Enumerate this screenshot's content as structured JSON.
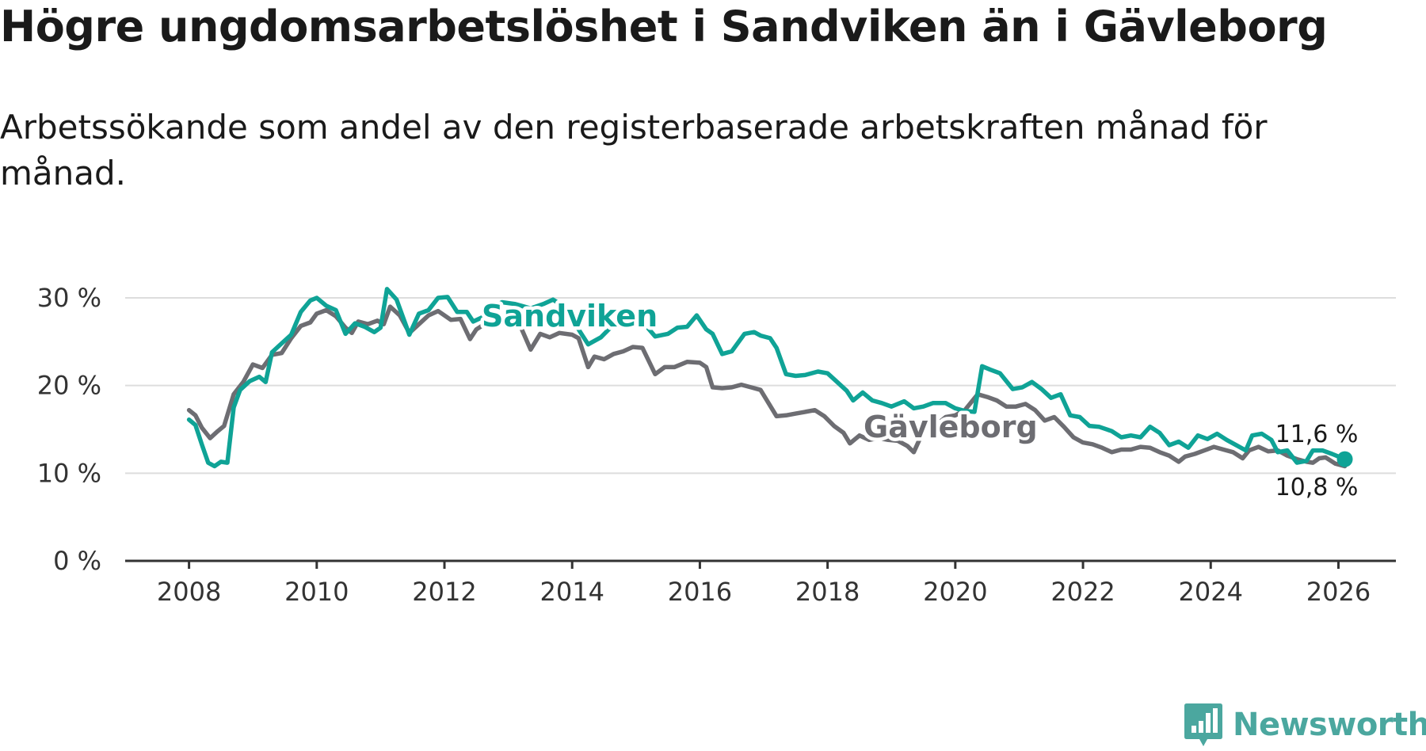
{
  "title": "Högre ungdomsarbetslöshet i Sandviken än i Gävleborg",
  "subtitle": "Arbetssökande som andel av den registerbaserade arbetskraften månad för månad.",
  "brand": "Newsworthy",
  "colors": {
    "sandviken": "#0fa396",
    "gavleborg": "#6d6d72",
    "grid": "#dddddd",
    "axis": "#333333",
    "brand": "#4ba79f"
  },
  "chart_data": {
    "type": "line",
    "title": "Högre ungdomsarbetslöshet i Sandviken än i Gävleborg",
    "xlabel": "",
    "ylabel": "",
    "xlim": [
      2007.0,
      2026.9
    ],
    "ylim": [
      0,
      30
    ],
    "grid": true,
    "x_ticks": [
      2008,
      2010,
      2012,
      2014,
      2016,
      2018,
      2020,
      2022,
      2024,
      2026
    ],
    "y_ticks": [
      0,
      10,
      20,
      30
    ],
    "y_tick_labels": [
      "0 %",
      "10 %",
      "20 %",
      "30 %"
    ],
    "series": [
      {
        "name": "Gävleborg",
        "color": "#6d6d72",
        "end_label": "10,8 %",
        "points": [
          [
            2008.0,
            17.2
          ],
          [
            2008.1,
            16.6
          ],
          [
            2008.2,
            15.2
          ],
          [
            2008.33,
            14.0
          ],
          [
            2008.45,
            14.8
          ],
          [
            2008.55,
            15.4
          ],
          [
            2008.7,
            19.0
          ],
          [
            2008.85,
            20.4
          ],
          [
            2009.0,
            22.4
          ],
          [
            2009.15,
            22.0
          ],
          [
            2009.3,
            23.5
          ],
          [
            2009.45,
            23.7
          ],
          [
            2009.6,
            25.4
          ],
          [
            2009.75,
            26.8
          ],
          [
            2009.9,
            27.2
          ],
          [
            2010.0,
            28.2
          ],
          [
            2010.15,
            28.6
          ],
          [
            2010.3,
            27.9
          ],
          [
            2010.45,
            26.6
          ],
          [
            2010.55,
            26.0
          ],
          [
            2010.65,
            27.3
          ],
          [
            2010.8,
            27.0
          ],
          [
            2010.95,
            27.4
          ],
          [
            2011.05,
            27.0
          ],
          [
            2011.15,
            29.0
          ],
          [
            2011.3,
            28.0
          ],
          [
            2011.45,
            26.0
          ],
          [
            2011.6,
            27.0
          ],
          [
            2011.75,
            28.0
          ],
          [
            2011.9,
            28.5
          ],
          [
            2012.0,
            28.0
          ],
          [
            2012.1,
            27.5
          ],
          [
            2012.25,
            27.6
          ],
          [
            2012.4,
            25.3
          ],
          [
            2012.5,
            26.4
          ],
          [
            2012.65,
            27.1
          ],
          [
            2012.8,
            27.6
          ],
          [
            2013.0,
            27.5
          ],
          [
            2013.2,
            26.6
          ],
          [
            2013.35,
            24.1
          ],
          [
            2013.5,
            25.9
          ],
          [
            2013.65,
            25.5
          ],
          [
            2013.8,
            26.0
          ],
          [
            2014.0,
            25.8
          ],
          [
            2014.1,
            25.4
          ],
          [
            2014.25,
            22.1
          ],
          [
            2014.35,
            23.3
          ],
          [
            2014.5,
            23.0
          ],
          [
            2014.65,
            23.6
          ],
          [
            2014.8,
            23.9
          ],
          [
            2014.95,
            24.4
          ],
          [
            2015.1,
            24.3
          ],
          [
            2015.3,
            21.3
          ],
          [
            2015.45,
            22.1
          ],
          [
            2015.6,
            22.1
          ],
          [
            2015.8,
            22.7
          ],
          [
            2016.0,
            22.6
          ],
          [
            2016.1,
            22.1
          ],
          [
            2016.2,
            19.8
          ],
          [
            2016.35,
            19.7
          ],
          [
            2016.5,
            19.8
          ],
          [
            2016.65,
            20.1
          ],
          [
            2016.8,
            19.8
          ],
          [
            2016.95,
            19.5
          ],
          [
            2017.05,
            18.3
          ],
          [
            2017.2,
            16.5
          ],
          [
            2017.35,
            16.6
          ],
          [
            2017.5,
            16.8
          ],
          [
            2017.65,
            17.0
          ],
          [
            2017.8,
            17.2
          ],
          [
            2017.95,
            16.5
          ],
          [
            2018.1,
            15.4
          ],
          [
            2018.25,
            14.6
          ],
          [
            2018.35,
            13.4
          ],
          [
            2018.5,
            14.3
          ],
          [
            2018.65,
            13.8
          ],
          [
            2018.8,
            14.0
          ],
          [
            2018.95,
            13.8
          ],
          [
            2019.1,
            13.7
          ],
          [
            2019.25,
            13.1
          ],
          [
            2019.35,
            12.4
          ],
          [
            2019.5,
            14.8
          ],
          [
            2019.65,
            15.2
          ],
          [
            2019.85,
            16.4
          ],
          [
            2020.0,
            16.6
          ],
          [
            2020.15,
            17.2
          ],
          [
            2020.35,
            19.0
          ],
          [
            2020.5,
            18.7
          ],
          [
            2020.65,
            18.3
          ],
          [
            2020.8,
            17.6
          ],
          [
            2020.95,
            17.6
          ],
          [
            2021.1,
            17.9
          ],
          [
            2021.25,
            17.2
          ],
          [
            2021.4,
            16.0
          ],
          [
            2021.55,
            16.4
          ],
          [
            2021.7,
            15.3
          ],
          [
            2021.85,
            14.1
          ],
          [
            2022.0,
            13.5
          ],
          [
            2022.15,
            13.3
          ],
          [
            2022.3,
            12.9
          ],
          [
            2022.45,
            12.4
          ],
          [
            2022.6,
            12.7
          ],
          [
            2022.75,
            12.7
          ],
          [
            2022.9,
            13.0
          ],
          [
            2023.05,
            12.9
          ],
          [
            2023.2,
            12.4
          ],
          [
            2023.35,
            12.0
          ],
          [
            2023.5,
            11.3
          ],
          [
            2023.6,
            11.9
          ],
          [
            2023.75,
            12.2
          ],
          [
            2023.9,
            12.6
          ],
          [
            2024.05,
            13.0
          ],
          [
            2024.2,
            12.7
          ],
          [
            2024.35,
            12.4
          ],
          [
            2024.5,
            11.7
          ],
          [
            2024.6,
            12.6
          ],
          [
            2024.75,
            13.0
          ],
          [
            2024.9,
            12.5
          ],
          [
            2025.05,
            12.6
          ],
          [
            2025.2,
            12.0
          ],
          [
            2025.35,
            11.6
          ],
          [
            2025.5,
            11.3
          ],
          [
            2025.6,
            11.2
          ],
          [
            2025.7,
            11.7
          ],
          [
            2025.8,
            11.8
          ],
          [
            2025.95,
            11.1
          ],
          [
            2026.1,
            10.8
          ]
        ]
      },
      {
        "name": "Sandviken",
        "color": "#0fa396",
        "end_label": "11,6 %",
        "points": [
          [
            2008.0,
            16.1
          ],
          [
            2008.1,
            15.5
          ],
          [
            2008.2,
            13.3
          ],
          [
            2008.3,
            11.2
          ],
          [
            2008.4,
            10.8
          ],
          [
            2008.5,
            11.3
          ],
          [
            2008.6,
            11.2
          ],
          [
            2008.7,
            17.5
          ],
          [
            2008.8,
            19.5
          ],
          [
            2008.95,
            20.5
          ],
          [
            2009.1,
            21.0
          ],
          [
            2009.2,
            20.4
          ],
          [
            2009.3,
            23.8
          ],
          [
            2009.45,
            24.8
          ],
          [
            2009.6,
            25.8
          ],
          [
            2009.75,
            28.4
          ],
          [
            2009.9,
            29.7
          ],
          [
            2010.0,
            30.0
          ],
          [
            2010.15,
            29.1
          ],
          [
            2010.3,
            28.6
          ],
          [
            2010.45,
            25.9
          ],
          [
            2010.6,
            27.1
          ],
          [
            2010.75,
            26.7
          ],
          [
            2010.9,
            26.1
          ],
          [
            2011.0,
            26.6
          ],
          [
            2011.1,
            31.0
          ],
          [
            2011.25,
            29.8
          ],
          [
            2011.45,
            25.8
          ],
          [
            2011.6,
            28.2
          ],
          [
            2011.75,
            28.6
          ],
          [
            2011.9,
            30.0
          ],
          [
            2012.05,
            30.1
          ],
          [
            2012.2,
            28.4
          ],
          [
            2012.35,
            28.4
          ],
          [
            2012.45,
            27.3
          ],
          [
            2012.6,
            27.8
          ],
          [
            2012.75,
            28.9
          ],
          [
            2012.9,
            29.5
          ],
          [
            2013.1,
            29.3
          ],
          [
            2013.35,
            28.8
          ],
          [
            2013.55,
            29.3
          ],
          [
            2013.7,
            29.8
          ],
          [
            2013.9,
            28.9
          ],
          [
            2014.1,
            26.4
          ],
          [
            2014.25,
            24.7
          ],
          [
            2014.45,
            25.5
          ],
          [
            2014.6,
            26.6
          ],
          [
            2014.75,
            27.3
          ],
          [
            2014.95,
            27.5
          ],
          [
            2015.1,
            27.3
          ],
          [
            2015.3,
            25.6
          ],
          [
            2015.5,
            25.9
          ],
          [
            2015.65,
            26.6
          ],
          [
            2015.8,
            26.7
          ],
          [
            2015.95,
            28.0
          ],
          [
            2016.1,
            26.4
          ],
          [
            2016.2,
            25.9
          ],
          [
            2016.35,
            23.6
          ],
          [
            2016.5,
            23.9
          ],
          [
            2016.7,
            25.9
          ],
          [
            2016.85,
            26.1
          ],
          [
            2016.95,
            25.7
          ],
          [
            2017.1,
            25.4
          ],
          [
            2017.2,
            24.3
          ],
          [
            2017.35,
            21.3
          ],
          [
            2017.5,
            21.1
          ],
          [
            2017.65,
            21.2
          ],
          [
            2017.85,
            21.6
          ],
          [
            2018.0,
            21.4
          ],
          [
            2018.15,
            20.4
          ],
          [
            2018.3,
            19.4
          ],
          [
            2018.4,
            18.3
          ],
          [
            2018.55,
            19.2
          ],
          [
            2018.7,
            18.3
          ],
          [
            2018.85,
            18.0
          ],
          [
            2019.0,
            17.6
          ],
          [
            2019.2,
            18.2
          ],
          [
            2019.35,
            17.4
          ],
          [
            2019.5,
            17.6
          ],
          [
            2019.65,
            18.0
          ],
          [
            2019.85,
            18.0
          ],
          [
            2020.0,
            17.4
          ],
          [
            2020.15,
            17.1
          ],
          [
            2020.3,
            17.0
          ],
          [
            2020.42,
            22.2
          ],
          [
            2020.55,
            21.8
          ],
          [
            2020.7,
            21.4
          ],
          [
            2020.9,
            19.6
          ],
          [
            2021.05,
            19.8
          ],
          [
            2021.2,
            20.4
          ],
          [
            2021.35,
            19.6
          ],
          [
            2021.5,
            18.6
          ],
          [
            2021.65,
            19.0
          ],
          [
            2021.8,
            16.6
          ],
          [
            2021.95,
            16.4
          ],
          [
            2022.1,
            15.4
          ],
          [
            2022.25,
            15.3
          ],
          [
            2022.45,
            14.8
          ],
          [
            2022.6,
            14.1
          ],
          [
            2022.75,
            14.3
          ],
          [
            2022.9,
            14.1
          ],
          [
            2023.05,
            15.3
          ],
          [
            2023.2,
            14.6
          ],
          [
            2023.35,
            13.2
          ],
          [
            2023.5,
            13.6
          ],
          [
            2023.65,
            12.9
          ],
          [
            2023.8,
            14.3
          ],
          [
            2023.95,
            13.9
          ],
          [
            2024.1,
            14.5
          ],
          [
            2024.25,
            13.8
          ],
          [
            2024.4,
            13.2
          ],
          [
            2024.55,
            12.6
          ],
          [
            2024.65,
            14.3
          ],
          [
            2024.8,
            14.5
          ],
          [
            2024.95,
            13.8
          ],
          [
            2025.05,
            12.4
          ],
          [
            2025.2,
            12.6
          ],
          [
            2025.35,
            11.2
          ],
          [
            2025.5,
            11.4
          ],
          [
            2025.6,
            12.6
          ],
          [
            2025.75,
            12.6
          ],
          [
            2025.9,
            12.2
          ],
          [
            2026.1,
            11.6
          ]
        ]
      }
    ]
  }
}
